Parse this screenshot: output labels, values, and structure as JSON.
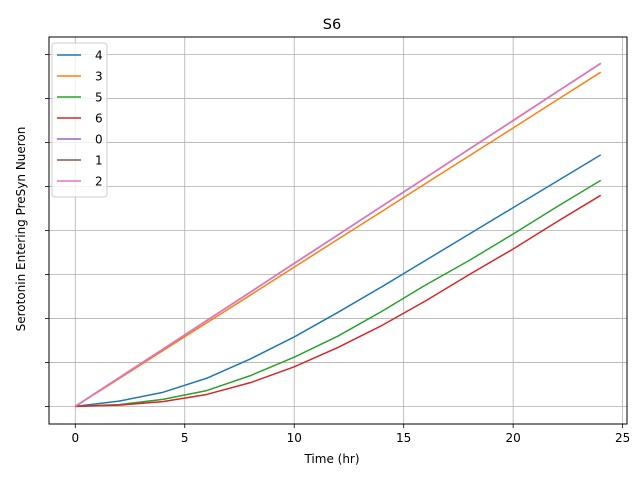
{
  "chart_data": {
    "type": "line",
    "title": "S6",
    "xlabel": "Time (hr)",
    "ylabel": "Serotonin Entering PreSyn Nueron",
    "xlim": [
      -1.2,
      25.2
    ],
    "ylim": [
      -1.0,
      21.0
    ],
    "xticks": [
      0,
      5,
      10,
      15,
      20,
      25
    ],
    "xtick_labels": [
      "0",
      "5",
      "10",
      "15",
      "20",
      "25"
    ],
    "yticks": [
      0,
      2.5,
      5,
      7.5,
      10,
      12.5,
      15,
      17.5,
      20
    ],
    "ytick_labels_visible": false,
    "grid": true,
    "legend_position": "upper left",
    "x": [
      0,
      2,
      4,
      6,
      8,
      10,
      12,
      14,
      16,
      18,
      20,
      22,
      24
    ],
    "series": [
      {
        "name": "4",
        "color": "#1f77b4",
        "values": [
          0,
          0.3,
          0.8,
          1.6,
          2.7,
          3.95,
          5.35,
          6.8,
          8.3,
          9.8,
          11.3,
          12.8,
          14.3
        ]
      },
      {
        "name": "3",
        "color": "#ff7f0e",
        "values": [
          0,
          1.58,
          3.17,
          4.75,
          6.33,
          7.92,
          9.5,
          11.08,
          12.67,
          14.25,
          15.83,
          17.42,
          19.0
        ]
      },
      {
        "name": "5",
        "color": "#2ca02c",
        "values": [
          0,
          0.1,
          0.4,
          0.9,
          1.75,
          2.8,
          4.0,
          5.4,
          6.9,
          8.3,
          9.8,
          11.35,
          12.85
        ]
      },
      {
        "name": "6",
        "color": "#d62728",
        "values": [
          0,
          0.07,
          0.27,
          0.68,
          1.35,
          2.25,
          3.35,
          4.6,
          6.0,
          7.5,
          8.95,
          10.5,
          12.0
        ]
      },
      {
        "name": "0",
        "color": "#9467bd",
        "values": [
          0,
          1.63,
          3.25,
          4.88,
          6.5,
          8.13,
          9.75,
          11.38,
          13.0,
          14.63,
          16.25,
          17.88,
          19.5
        ]
      },
      {
        "name": "1",
        "color": "#8c564b",
        "values": [
          0,
          1.63,
          3.25,
          4.88,
          6.5,
          8.13,
          9.75,
          11.38,
          13.0,
          14.63,
          16.25,
          17.88,
          19.5
        ]
      },
      {
        "name": "2",
        "color": "#e377c2",
        "values": [
          0,
          1.63,
          3.25,
          4.88,
          6.5,
          8.13,
          9.75,
          11.38,
          13.0,
          14.63,
          16.25,
          17.88,
          19.5
        ]
      }
    ]
  }
}
